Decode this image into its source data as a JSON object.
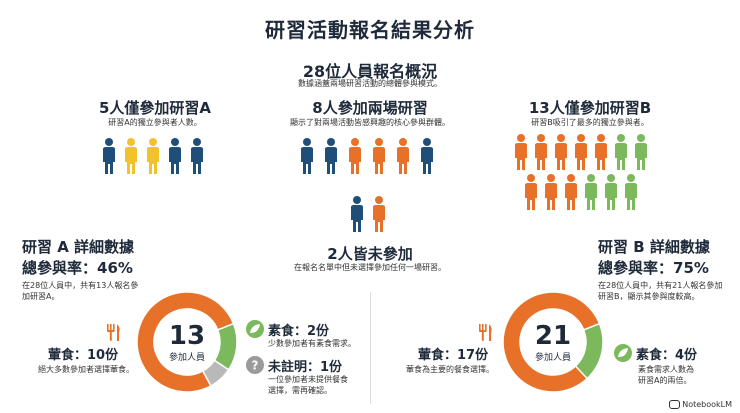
{
  "title": "研習活動報名結果分析",
  "overview": {
    "title": "28位人員報名概況",
    "subtitle": "數據涵蓋兩場研習活動的總體參與模式。"
  },
  "group_a_only": {
    "title": "5人僅參加研習A",
    "subtitle": "研習A的獨立參與者人數。"
  },
  "group_both": {
    "title": "8人參加兩場研習",
    "subtitle": "顯示了對兩場活動皆感興趣的核心參與群體。"
  },
  "group_b_only": {
    "title": "13人僅參加研習B",
    "subtitle": "研習B吸引了最多的獨立參與者。"
  },
  "group_none": {
    "title": "2人皆未參加",
    "subtitle": "在報名名單中但未選擇參加任何一場研習。"
  },
  "workshop_a": {
    "title": "研習 A 詳細數據",
    "rate": "總參與率：46%",
    "rate_value": 46,
    "note_line1": "在28位人員中，共有13人報名參",
    "note_line2": "加研習A。",
    "total": "13",
    "total_caption": "參加人員",
    "meat_label": "葷食：10份",
    "meat_value": 10,
    "meat_desc": "絕大多數參加者選擇葷食。",
    "veg_label": "素食：2份",
    "veg_value": 2,
    "veg_desc": "少數參加者有素食需求。",
    "unknown_label": "未註明：1份",
    "unknown_value": 1,
    "unknown_desc_line1": "一位參加者未提供餐食",
    "unknown_desc_line2": "選擇，需再確認。"
  },
  "workshop_b": {
    "title": "研習 B 詳細數據",
    "rate": "總參與率：75%",
    "rate_value": 75,
    "note_line1": "在28位人員中，共有21人報名參加",
    "note_line2": "研習B，顯示其參與度較高。",
    "total": "21",
    "total_caption": "參加人員",
    "meat_label": "葷食：17份",
    "meat_value": 17,
    "meat_desc": "葷食為主要的餐食選擇。",
    "veg_label": "素食：4份",
    "veg_value": 4,
    "veg_desc_line1": "素食需求人數為",
    "veg_desc_line2": "研習A的兩倍。"
  },
  "colors": {
    "navy": "#1f4e79",
    "yellow": "#f2c12e",
    "orange": "#e8712a",
    "green": "#7cb95c",
    "gray": "#b9b9b9",
    "dark": "#1e2a3a"
  },
  "icons": {
    "meat": "fork-knife-icon",
    "veg": "leaf-icon",
    "unknown": "question-circle-icon"
  },
  "watermark": "NotebookLM"
}
